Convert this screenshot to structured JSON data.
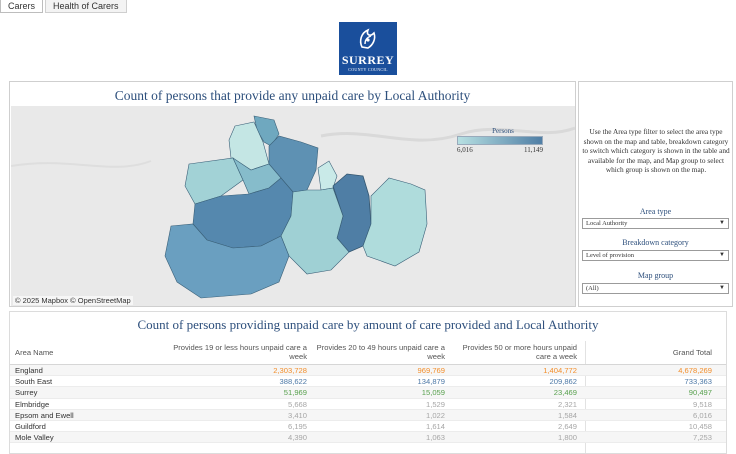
{
  "tabs": [
    {
      "label": "Carers",
      "active": true
    },
    {
      "label": "Health of Carers",
      "active": false
    }
  ],
  "logo": {
    "line1": "SURREY",
    "line2": "COUNTY COUNCIL"
  },
  "map": {
    "title": "Count of persons that provide any unpaid care by Local Authority",
    "attribution": "© 2025 Mapbox  © OpenStreetMap",
    "legend": {
      "title": "Persons",
      "min": "6,016",
      "max": "11,149"
    }
  },
  "side": {
    "instructions": "Use the Area type filter to select the area type shown on the map and table, breakdown category to switch which category is shown in the table and available for the map, and Map group to select which group is shown on the map.",
    "filters": [
      {
        "label": "Area type",
        "value": "Local Authority"
      },
      {
        "label": "Breakdown category",
        "value": "Level of provision"
      },
      {
        "label": "Map group",
        "value": "(All)"
      }
    ]
  },
  "table": {
    "title": "Count of persons providing unpaid care by amount of care provided and Local Authority",
    "headers": {
      "name": "Area Name",
      "c1": "Provides 19 or less hours unpaid care a week",
      "c2": "Provides 20 to 49 hours unpaid care a week",
      "c3": "Provides 50 or more hours unpaid care a week",
      "c4": "Grand Total"
    },
    "rows": [
      {
        "name": "England",
        "c1": "2,303,728",
        "c2": "969,769",
        "c3": "1,404,772",
        "c4": "4,678,269"
      },
      {
        "name": "South East",
        "c1": "388,622",
        "c2": "134,879",
        "c3": "209,862",
        "c4": "733,363"
      },
      {
        "name": "Surrey",
        "c1": "51,969",
        "c2": "15,059",
        "c3": "23,469",
        "c4": "90,497"
      },
      {
        "name": "Elmbridge",
        "c1": "5,668",
        "c2": "1,529",
        "c3": "2,321",
        "c4": "9,518"
      },
      {
        "name": "Epsom and Ewell",
        "c1": "3,410",
        "c2": "1,022",
        "c3": "1,584",
        "c4": "6,016"
      },
      {
        "name": "Guildford",
        "c1": "6,195",
        "c2": "1,614",
        "c3": "2,649",
        "c4": "10,458"
      },
      {
        "name": "Mole Valley",
        "c1": "4,390",
        "c2": "1,063",
        "c3": "1,800",
        "c4": "7,253"
      }
    ]
  },
  "colors": {
    "title": "#2d4f7c",
    "england": "#f28e2b",
    "south_east": "#4e79a7",
    "surrey": "#59a14f",
    "district": "#a6a6a6",
    "legend_low": "#b7e0e2",
    "legend_high": "#4f7ea5",
    "logo_bg": "#1a4f9c"
  }
}
